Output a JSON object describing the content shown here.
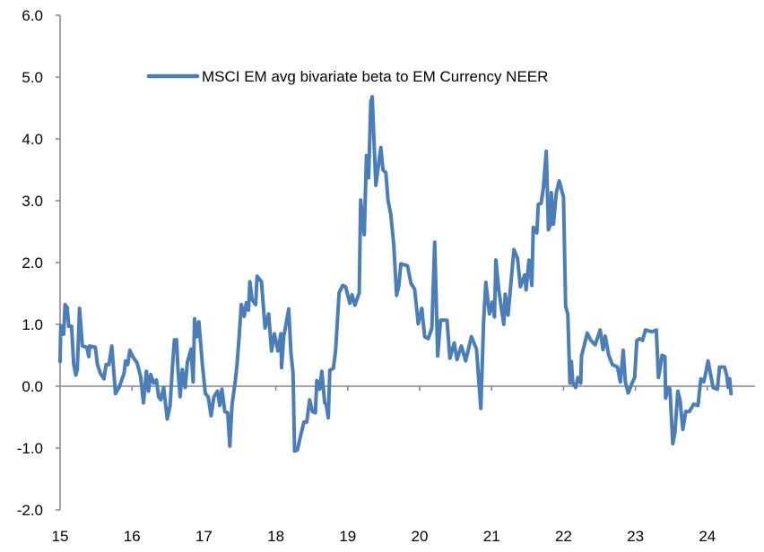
{
  "chart_data": {
    "type": "line",
    "title": "",
    "xlabel": "",
    "ylabel": "",
    "xlim": [
      15,
      24.6
    ],
    "ylim": [
      -2.0,
      6.0
    ],
    "x_ticks": [
      15,
      16,
      17,
      18,
      19,
      20,
      21,
      22,
      23,
      24
    ],
    "x_tick_labels": [
      "15",
      "16",
      "17",
      "18",
      "19",
      "20",
      "21",
      "22",
      "23",
      "24"
    ],
    "y_ticks": [
      -2.0,
      -1.0,
      0.0,
      1.0,
      2.0,
      3.0,
      4.0,
      5.0,
      6.0
    ],
    "y_tick_labels": [
      "-2.0",
      "-1.0",
      "0.0",
      "1.0",
      "2.0",
      "3.0",
      "4.0",
      "5.0",
      "6.0"
    ],
    "grid": false,
    "legend_position": "top-center",
    "colors": {
      "series": "#4a7ebb",
      "axis": "#868686"
    },
    "series": [
      {
        "name": "MSCI EM avg bivariate beta to EM Currency NEER",
        "points": [
          [
            15.0,
            0.4
          ],
          [
            15.01,
            0.98
          ],
          [
            15.05,
            0.84
          ],
          [
            15.07,
            1.32
          ],
          [
            15.1,
            1.27
          ],
          [
            15.12,
            0.97
          ],
          [
            15.16,
            0.97
          ],
          [
            15.19,
            0.35
          ],
          [
            15.22,
            0.18
          ],
          [
            15.24,
            0.27
          ],
          [
            15.27,
            1.26
          ],
          [
            15.31,
            0.65
          ],
          [
            15.37,
            0.63
          ],
          [
            15.4,
            0.48
          ],
          [
            15.41,
            0.65
          ],
          [
            15.49,
            0.63
          ],
          [
            15.52,
            0.35
          ],
          [
            15.56,
            0.21
          ],
          [
            15.61,
            0.12
          ],
          [
            15.64,
            0.35
          ],
          [
            15.68,
            0.35
          ],
          [
            15.72,
            0.65
          ],
          [
            15.77,
            -0.12
          ],
          [
            15.82,
            -0.02
          ],
          [
            15.89,
            0.21
          ],
          [
            15.91,
            0.41
          ],
          [
            15.94,
            0.35
          ],
          [
            15.97,
            0.58
          ],
          [
            16.01,
            0.48
          ],
          [
            16.07,
            0.38
          ],
          [
            16.12,
            0.16
          ],
          [
            16.16,
            -0.27
          ],
          [
            16.2,
            0.24
          ],
          [
            16.23,
            -0.08
          ],
          [
            16.26,
            0.19
          ],
          [
            16.3,
            0.05
          ],
          [
            16.34,
            0.1
          ],
          [
            16.37,
            -0.17
          ],
          [
            16.4,
            -0.22
          ],
          [
            16.44,
            -0.02
          ],
          [
            16.49,
            -0.53
          ],
          [
            16.53,
            -0.31
          ],
          [
            16.56,
            0.27
          ],
          [
            16.59,
            0.75
          ],
          [
            16.62,
            0.75
          ],
          [
            16.64,
            0.27
          ],
          [
            16.67,
            -0.17
          ],
          [
            16.7,
            0.27
          ],
          [
            16.74,
            -0.02
          ],
          [
            16.77,
            0.39
          ],
          [
            16.82,
            0.6
          ],
          [
            16.85,
            0.07
          ],
          [
            16.87,
            1.09
          ],
          [
            16.9,
            0.8
          ],
          [
            16.93,
            1.04
          ],
          [
            16.98,
            0.33
          ],
          [
            17.02,
            -0.12
          ],
          [
            17.06,
            -0.17
          ],
          [
            17.1,
            -0.48
          ],
          [
            17.14,
            -0.17
          ],
          [
            17.19,
            -0.08
          ],
          [
            17.22,
            -0.31
          ],
          [
            17.25,
            -0.05
          ],
          [
            17.29,
            -0.41
          ],
          [
            17.33,
            -0.43
          ],
          [
            17.36,
            -0.97
          ],
          [
            17.39,
            -0.31
          ],
          [
            17.44,
            0.12
          ],
          [
            17.46,
            0.35
          ],
          [
            17.49,
            0.8
          ],
          [
            17.52,
            1.32
          ],
          [
            17.56,
            1.13
          ],
          [
            17.59,
            1.35
          ],
          [
            17.62,
            1.23
          ],
          [
            17.64,
            1.69
          ],
          [
            17.67,
            1.4
          ],
          [
            17.72,
            1.32
          ],
          [
            17.74,
            1.78
          ],
          [
            17.8,
            1.69
          ],
          [
            17.85,
            0.94
          ],
          [
            17.9,
            1.17
          ],
          [
            17.94,
            0.57
          ],
          [
            17.98,
            0.85
          ],
          [
            18.03,
            0.57
          ],
          [
            18.07,
            0.85
          ],
          [
            18.08,
            0.3
          ],
          [
            18.11,
            0.8
          ],
          [
            18.18,
            1.25
          ],
          [
            18.21,
            0.55
          ],
          [
            18.24,
            0.21
          ],
          [
            18.26,
            -1.05
          ],
          [
            18.3,
            -1.03
          ],
          [
            18.34,
            -0.82
          ],
          [
            18.39,
            -0.58
          ],
          [
            18.43,
            -0.58
          ],
          [
            18.47,
            -0.22
          ],
          [
            18.51,
            -0.41
          ],
          [
            18.55,
            -0.43
          ],
          [
            18.57,
            0.09
          ],
          [
            18.61,
            -0.05
          ],
          [
            18.64,
            0.24
          ],
          [
            18.68,
            -0.27
          ],
          [
            18.7,
            -0.29
          ],
          [
            18.73,
            -0.51
          ],
          [
            18.75,
            0.26
          ],
          [
            18.8,
            0.29
          ],
          [
            18.83,
            0.57
          ],
          [
            18.88,
            1.51
          ],
          [
            18.93,
            1.63
          ],
          [
            18.97,
            1.61
          ],
          [
            19.03,
            1.34
          ],
          [
            19.06,
            1.48
          ],
          [
            19.1,
            1.31
          ],
          [
            19.16,
            1.51
          ],
          [
            19.18,
            3.01
          ],
          [
            19.23,
            2.45
          ],
          [
            19.26,
            3.73
          ],
          [
            19.29,
            3.37
          ],
          [
            19.32,
            4.6
          ],
          [
            19.34,
            4.68
          ],
          [
            19.39,
            3.25
          ],
          [
            19.42,
            3.51
          ],
          [
            19.46,
            3.86
          ],
          [
            19.49,
            3.5
          ],
          [
            19.53,
            3.45
          ],
          [
            19.56,
            3.01
          ],
          [
            19.6,
            2.77
          ],
          [
            19.64,
            2.29
          ],
          [
            19.68,
            1.47
          ],
          [
            19.71,
            1.62
          ],
          [
            19.74,
            1.98
          ],
          [
            19.83,
            1.95
          ],
          [
            19.88,
            1.66
          ],
          [
            19.93,
            1.57
          ],
          [
            19.98,
            1.01
          ],
          [
            20.03,
            1.26
          ],
          [
            20.07,
            0.8
          ],
          [
            20.12,
            0.77
          ],
          [
            20.17,
            0.94
          ],
          [
            20.21,
            2.33
          ],
          [
            20.25,
            0.49
          ],
          [
            20.29,
            1.07
          ],
          [
            20.38,
            1.07
          ],
          [
            20.42,
            0.45
          ],
          [
            20.48,
            0.7
          ],
          [
            20.52,
            0.43
          ],
          [
            20.58,
            0.65
          ],
          [
            20.64,
            0.41
          ],
          [
            20.72,
            0.8
          ],
          [
            20.79,
            0.6
          ],
          [
            20.82,
            0.12
          ],
          [
            20.85,
            -0.36
          ],
          [
            20.89,
            1.07
          ],
          [
            20.92,
            1.68
          ],
          [
            20.97,
            1.17
          ],
          [
            21.01,
            1.36
          ],
          [
            21.04,
            1.12
          ],
          [
            21.06,
            2.04
          ],
          [
            21.1,
            1.56
          ],
          [
            21.17,
            1.0
          ],
          [
            21.19,
            1.49
          ],
          [
            21.23,
            1.15
          ],
          [
            21.31,
            2.21
          ],
          [
            21.36,
            2.07
          ],
          [
            21.4,
            1.61
          ],
          [
            21.46,
            1.8
          ],
          [
            21.48,
            1.56
          ],
          [
            21.52,
            2.04
          ],
          [
            21.56,
            1.63
          ],
          [
            21.58,
            2.57
          ],
          [
            21.63,
            2.48
          ],
          [
            21.65,
            2.94
          ],
          [
            21.69,
            2.96
          ],
          [
            21.72,
            3.2
          ],
          [
            21.76,
            3.8
          ],
          [
            21.79,
            2.53
          ],
          [
            21.82,
            2.62
          ],
          [
            21.83,
            3.13
          ],
          [
            21.86,
            2.62
          ],
          [
            21.9,
            3.13
          ],
          [
            21.94,
            3.32
          ],
          [
            22.0,
            3.06
          ],
          [
            22.03,
            1.29
          ],
          [
            22.06,
            1.17
          ],
          [
            22.09,
            0.05
          ],
          [
            22.11,
            0.4
          ],
          [
            22.13,
            0.05
          ],
          [
            22.17,
            -0.02
          ],
          [
            22.2,
            0.14
          ],
          [
            22.24,
            0.05
          ],
          [
            22.25,
            0.49
          ],
          [
            22.29,
            0.67
          ],
          [
            22.33,
            0.86
          ],
          [
            22.38,
            0.74
          ],
          [
            22.44,
            0.67
          ],
          [
            22.51,
            0.91
          ],
          [
            22.55,
            0.59
          ],
          [
            22.58,
            0.81
          ],
          [
            22.63,
            0.5
          ],
          [
            22.68,
            0.35
          ],
          [
            22.75,
            0.31
          ],
          [
            22.79,
            0.07
          ],
          [
            22.83,
            0.58
          ],
          [
            22.86,
            0.07
          ],
          [
            22.9,
            -0.11
          ],
          [
            22.96,
            0.07
          ],
          [
            22.99,
            0.14
          ],
          [
            23.02,
            0.74
          ],
          [
            23.06,
            0.77
          ],
          [
            23.1,
            0.74
          ],
          [
            23.14,
            0.91
          ],
          [
            23.23,
            0.88
          ],
          [
            23.29,
            0.91
          ],
          [
            23.32,
            0.14
          ],
          [
            23.37,
            0.5
          ],
          [
            23.41,
            0.48
          ],
          [
            23.42,
            -0.19
          ],
          [
            23.46,
            -0.02
          ],
          [
            23.48,
            -0.05
          ],
          [
            23.52,
            -0.93
          ],
          [
            23.55,
            -0.75
          ],
          [
            23.59,
            -0.08
          ],
          [
            23.62,
            -0.22
          ],
          [
            23.66,
            -0.7
          ],
          [
            23.7,
            -0.41
          ],
          [
            23.75,
            -0.41
          ],
          [
            23.81,
            -0.29
          ],
          [
            23.87,
            -0.31
          ],
          [
            23.91,
            0.12
          ],
          [
            23.95,
            0.07
          ],
          [
            23.97,
            0.17
          ],
          [
            24.01,
            0.41
          ],
          [
            24.08,
            -0.02
          ],
          [
            24.14,
            -0.05
          ],
          [
            24.17,
            0.31
          ],
          [
            24.24,
            0.31
          ],
          [
            24.27,
            0.17
          ],
          [
            24.29,
            -0.02
          ],
          [
            24.31,
            0.12
          ],
          [
            24.33,
            -0.12
          ]
        ]
      }
    ]
  }
}
